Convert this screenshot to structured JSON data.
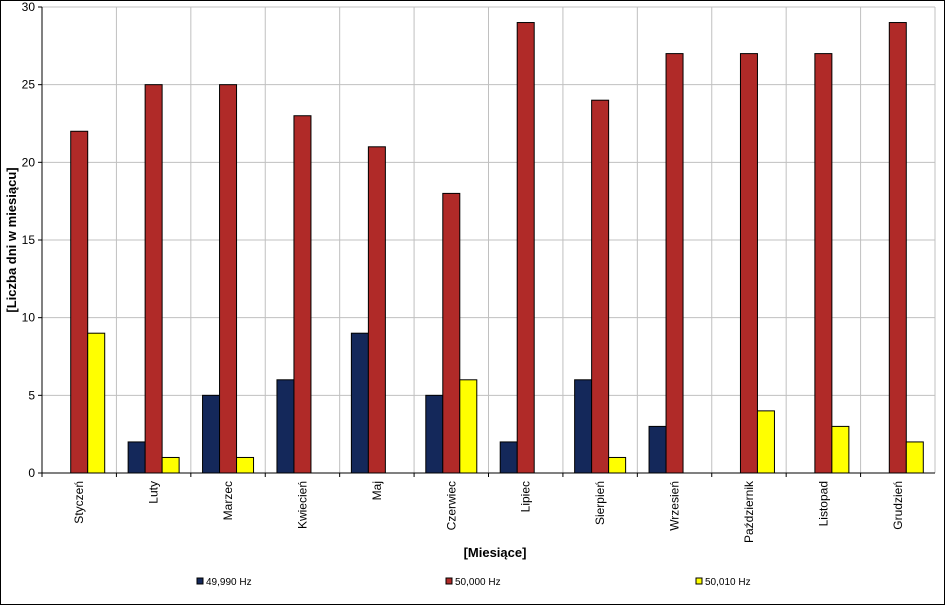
{
  "chart_data": {
    "type": "bar",
    "categories": [
      "Styczeń",
      "Luty",
      "Marzec",
      "Kwiecień",
      "Maj",
      "Czerwiec",
      "Lipiec",
      "Sierpień",
      "Wrzesień",
      "Październik",
      "Listopad",
      "Grudzień"
    ],
    "series": [
      {
        "name": "49,990 Hz",
        "color": "#14285a",
        "values": [
          0,
          2,
          5,
          6,
          9,
          5,
          2,
          6,
          3,
          0,
          0,
          0
        ]
      },
      {
        "name": "50,000 Hz",
        "color": "#b02a28",
        "values": [
          22,
          25,
          25,
          23,
          21,
          18,
          29,
          24,
          27,
          27,
          27,
          29
        ]
      },
      {
        "name": "50,010 Hz",
        "color": "#ffff00",
        "values": [
          9,
          1,
          1,
          0,
          0,
          6,
          0,
          1,
          0,
          4,
          3,
          2
        ]
      }
    ],
    "xlabel": "[Miesiące]",
    "ylabel": "[Liczba dni w miesiącu]",
    "ylim": [
      0,
      30
    ],
    "yticks": [
      "0",
      "5",
      "10",
      "15",
      "20",
      "25",
      "30"
    ],
    "grid": true,
    "legend_position": "bottom"
  }
}
